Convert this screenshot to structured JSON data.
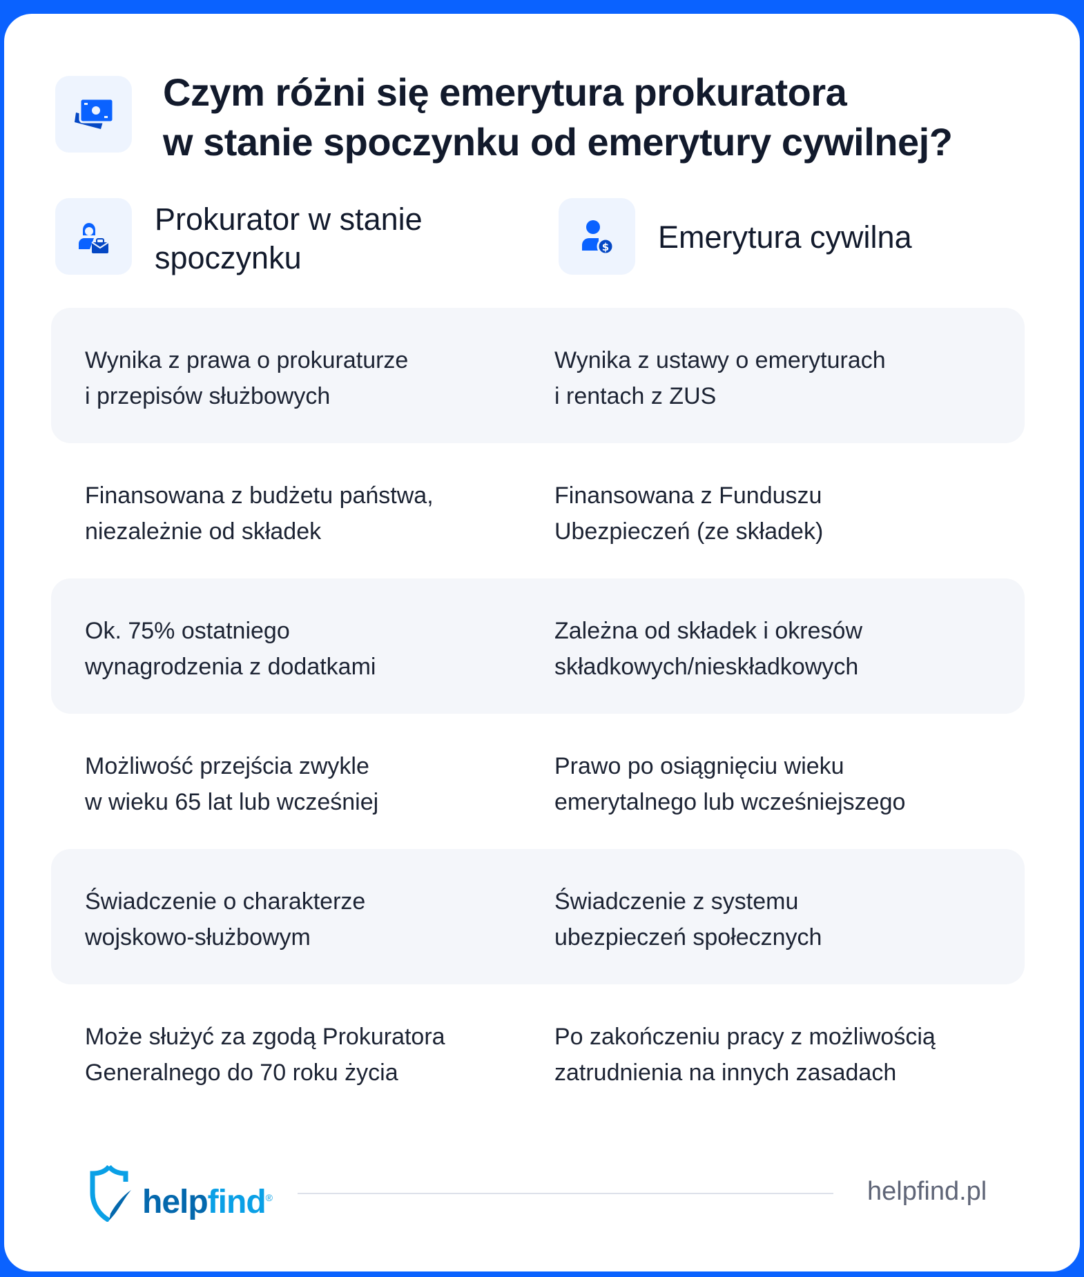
{
  "title": {
    "line1": "Czym różni się emerytura prokuratora",
    "line2": "w stanie spoczynku od emerytury cywilnej?",
    "icon": "money-bills-icon"
  },
  "columns": [
    {
      "label": "Prokurator w stanie\nspoczynku",
      "icon": "person-briefcase-icon"
    },
    {
      "label": "Emerytura cywilna",
      "icon": "person-dollar-icon"
    }
  ],
  "rows": [
    {
      "left": "Wynika z prawa o prokuraturze\ni przepisów służbowych",
      "right": "Wynika z ustawy o emeryturach\ni rentach z ZUS"
    },
    {
      "left": "Finansowana z budżetu państwa,\nniezależnie od składek",
      "right": "Finansowana z Funduszu\nUbezpieczeń (ze składek)"
    },
    {
      "left": "Ok. 75% ostatniego\nwynagrodzenia z dodatkami",
      "right": "Zależna od składek i okresów\nskładkowych/nieskładkowych"
    },
    {
      "left": "Możliwość przejścia zwykle\nw wieku 65 lat lub wcześniej",
      "right": "Prawo po osiągnięciu wieku\nemerytalnego lub wcześniejszego"
    },
    {
      "left": "Świadczenie o charakterze\nwojskowo-służbowym",
      "right": "Świadczenie z systemu\nubezpieczeń społecznych"
    },
    {
      "left": "Może służyć za zgodą Prokuratora\nGeneralnego do 70 roku życia",
      "right": "Po zakończeniu pracy z możliwością\nzatrudnienia na innych zasadach"
    }
  ],
  "footer": {
    "logo_part1": "help",
    "logo_part2": "find",
    "logo_mark": "®",
    "site": "helpfind.pl"
  },
  "colors": {
    "accent": "#0a62ff",
    "row_shade": "#f4f6fa",
    "icon_bg": "#eef4fe"
  }
}
